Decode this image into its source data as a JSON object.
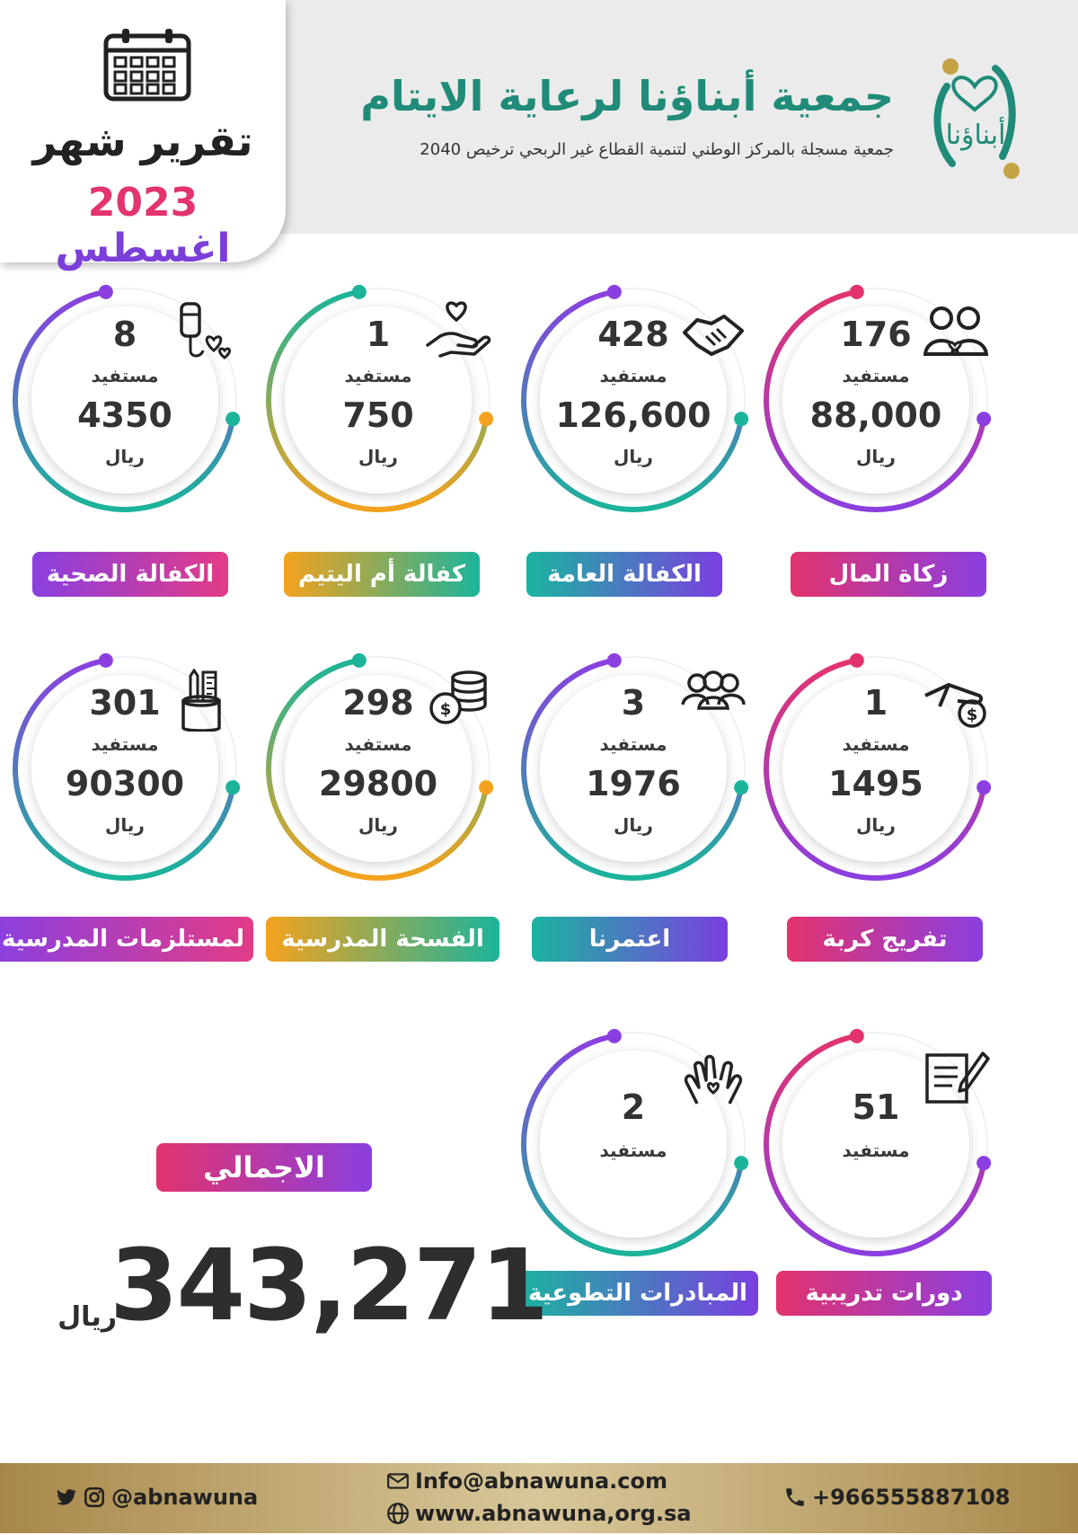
{
  "header": {
    "report_title": "تقرير شهر",
    "report_month_word": "اغسطس",
    "report_year": "2023",
    "org_name": "جمعية أبناؤنا لرعاية الايتام",
    "org_subtitle": "جمعية مسجلة بالمركز الوطني لتنمية القطاع غير الربحي ترخيص 2040",
    "logo_text": "أبناؤنا"
  },
  "labels": {
    "beneficiary": "مستفيد",
    "currency": "ريال"
  },
  "programs": [
    {
      "name": "زكاة المال",
      "count": "176",
      "amount": "88,000",
      "icon": "people-heart-icon"
    },
    {
      "name": "الكفالة العامة",
      "count": "428",
      "amount": "126,600",
      "icon": "handshake-icon"
    },
    {
      "name": "كفالة أم اليتيم",
      "count": "1",
      "amount": "750",
      "icon": "hand-heart-icon"
    },
    {
      "name": "الكفالة الصحية",
      "count": "8",
      "amount": "4350",
      "icon": "medical-drip-icon"
    },
    {
      "name": "تفريج كربة",
      "count": "1",
      "amount": "1495",
      "icon": "hand-coin-icon"
    },
    {
      "name": "اعتمرنا",
      "count": "3",
      "amount": "1976",
      "icon": "group-icon"
    },
    {
      "name": "الفسحة المدرسية",
      "count": "298",
      "amount": "29800",
      "icon": "coins-icon"
    },
    {
      "name": "لمستلزمات المدرسية",
      "count": "301",
      "amount": "90300",
      "icon": "pencil-cup-icon"
    },
    {
      "name": "دورات تدريبية",
      "count": "51",
      "icon": "document-pen-icon"
    },
    {
      "name": "المبادرات التطوعية",
      "count": "2",
      "icon": "clapping-hands-icon"
    }
  ],
  "total": {
    "label": "الاجمالي",
    "value": "343,271",
    "currency": "ريال"
  },
  "footer": {
    "social_handle": "@abnawuna",
    "email": "Info@abnawuna.com",
    "website": "www.abnawuna,org.sa",
    "phone": "+966555887108"
  },
  "colors": {
    "pink": "#e2336e",
    "purple": "#7b3fd9",
    "teal": "#1bb49a",
    "orange": "#f4a21e",
    "header_green": "#1f8b78",
    "footer_gold": "#c2a86c"
  }
}
